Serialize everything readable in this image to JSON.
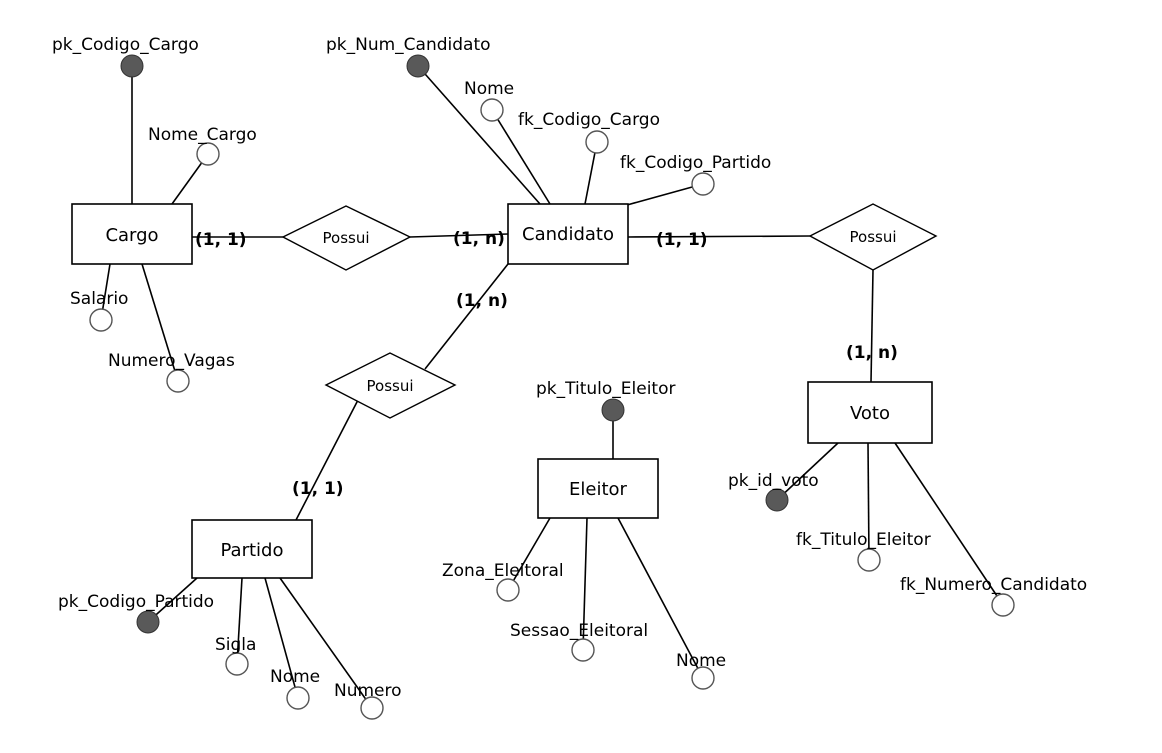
{
  "colors": {
    "key_fill": "#595959",
    "attr_fill": "#ffffff",
    "line": "#000000"
  },
  "entities": {
    "cargo": "Cargo",
    "candidato": "Candidato",
    "partido": "Partido",
    "eleitor": "Eleitor",
    "voto": "Voto"
  },
  "relationships": {
    "cargo_candidato": "Possui",
    "candidato_voto": "Possui",
    "candidato_partido": "Possui"
  },
  "cardinalities": {
    "cargo_side": "(1, 1)",
    "candidato_cargo_side": "(1, n)",
    "candidato_voto_side": "(1, 1)",
    "voto_side": "(1, n)",
    "candidato_partido_side": "(1, n)",
    "partido_side": "(1, 1)"
  },
  "attributes": {
    "pk_codigo_cargo": "pk_Codigo_Cargo",
    "nome_cargo": "Nome_Cargo",
    "salario": "Salario",
    "numero_vagas": "Numero_Vagas",
    "pk_num_candidato": "pk_Num_Candidato",
    "candidato_nome": "Nome",
    "fk_codigo_cargo": "fk_Codigo_Cargo",
    "fk_codigo_partido": "fk_Codigo_Partido",
    "pk_codigo_partido": "pk_Codigo_Partido",
    "sigla": "Sigla",
    "partido_nome": "Nome",
    "numero": "Numero",
    "pk_titulo_eleitor": "pk_Titulo_Eleitor",
    "zona_eleitoral": "Zona_Eleitoral",
    "sessao_eleitoral": "Sessao_Eleitoral",
    "eleitor_nome": "Nome",
    "pk_id_voto": "pk_id_voto",
    "fk_titulo_eleitor": "fk_Titulo_Eleitor",
    "fk_numero_candidato": "fk_Numero_Candidato"
  }
}
